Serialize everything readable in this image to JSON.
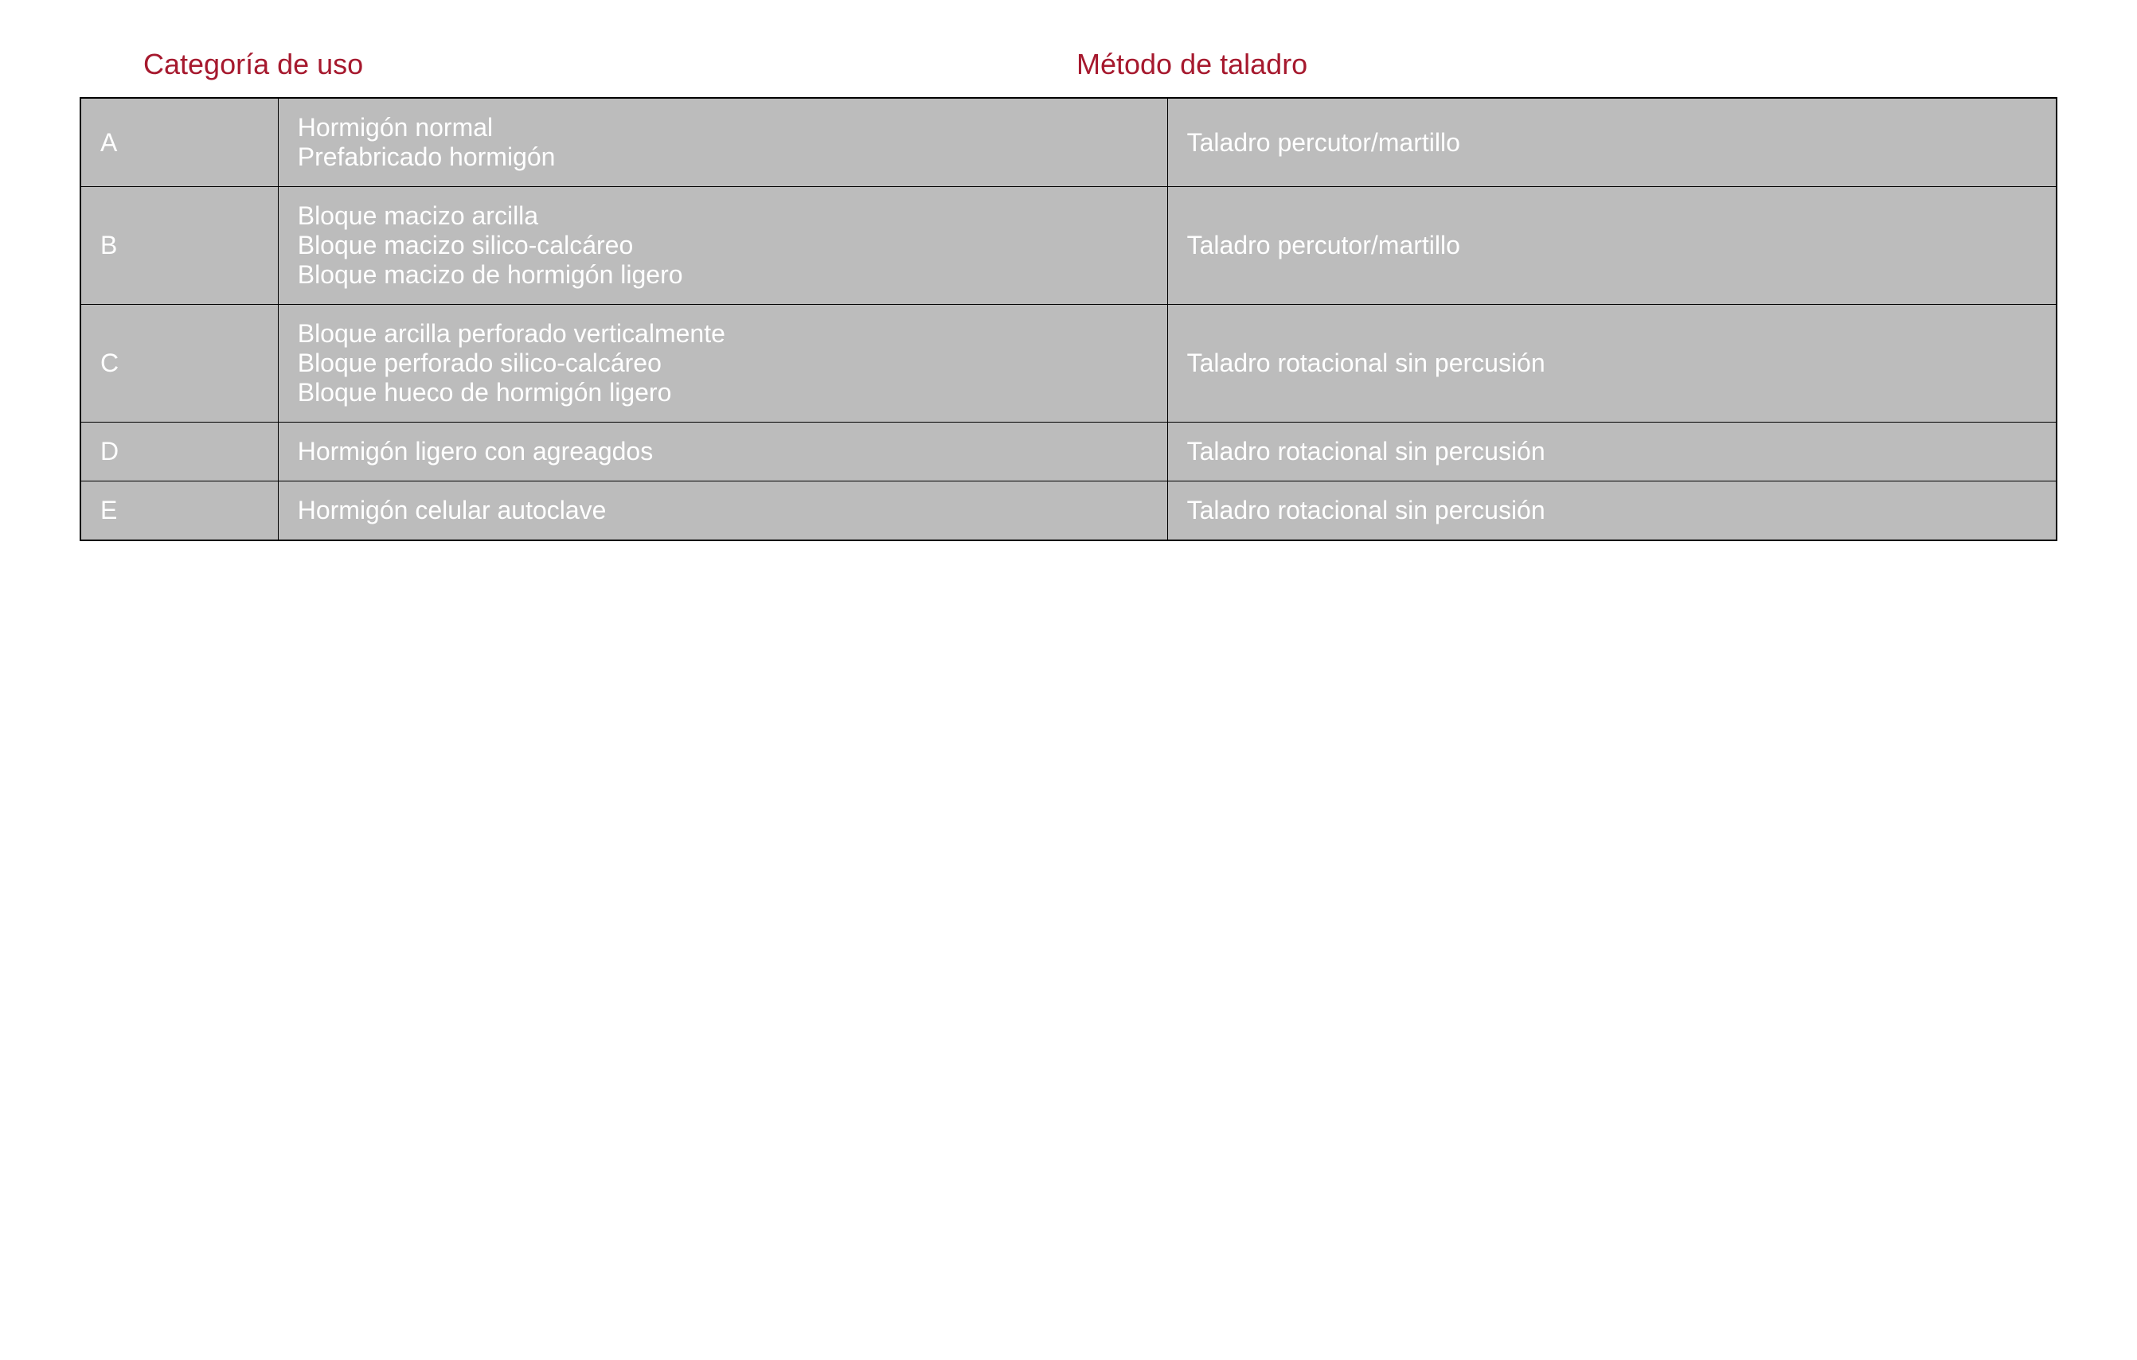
{
  "colors": {
    "heading": "#a6192e",
    "cell_bg": "#bcbcbc",
    "cell_text": "#ffffff",
    "border": "#000000",
    "page_bg": "#ffffff"
  },
  "typography": {
    "heading_fontsize": 36,
    "cell_fontsize": 32,
    "font_family": "Arial, Helvetica, sans-serif"
  },
  "headers": {
    "left": "Categoría de uso",
    "right": "Método de taladro"
  },
  "rows": [
    {
      "cat": "A",
      "desc": [
        "Hormigón normal",
        "Prefabricado hormigón"
      ],
      "method": "Taladro percutor/martillo"
    },
    {
      "cat": "B",
      "desc": [
        "Bloque macizo arcilla",
        "Bloque macizo silico-calcáreo",
        "Bloque macizo de hormigón ligero"
      ],
      "method": "Taladro percutor/martillo"
    },
    {
      "cat": "C",
      "desc": [
        "Bloque arcilla perforado verticalmente",
        "Bloque perforado silico-calcáreo",
        "Bloque hueco de hormigón ligero"
      ],
      "method": "Taladro rotacional sin percusión"
    },
    {
      "cat": "D",
      "desc": [
        "Hormigón ligero con agreagdos"
      ],
      "method": "Taladro rotacional sin percusión"
    },
    {
      "cat": "E",
      "desc": [
        "Hormigón celular autoclave"
      ],
      "method": "Taladro rotacional sin percusión"
    }
  ]
}
